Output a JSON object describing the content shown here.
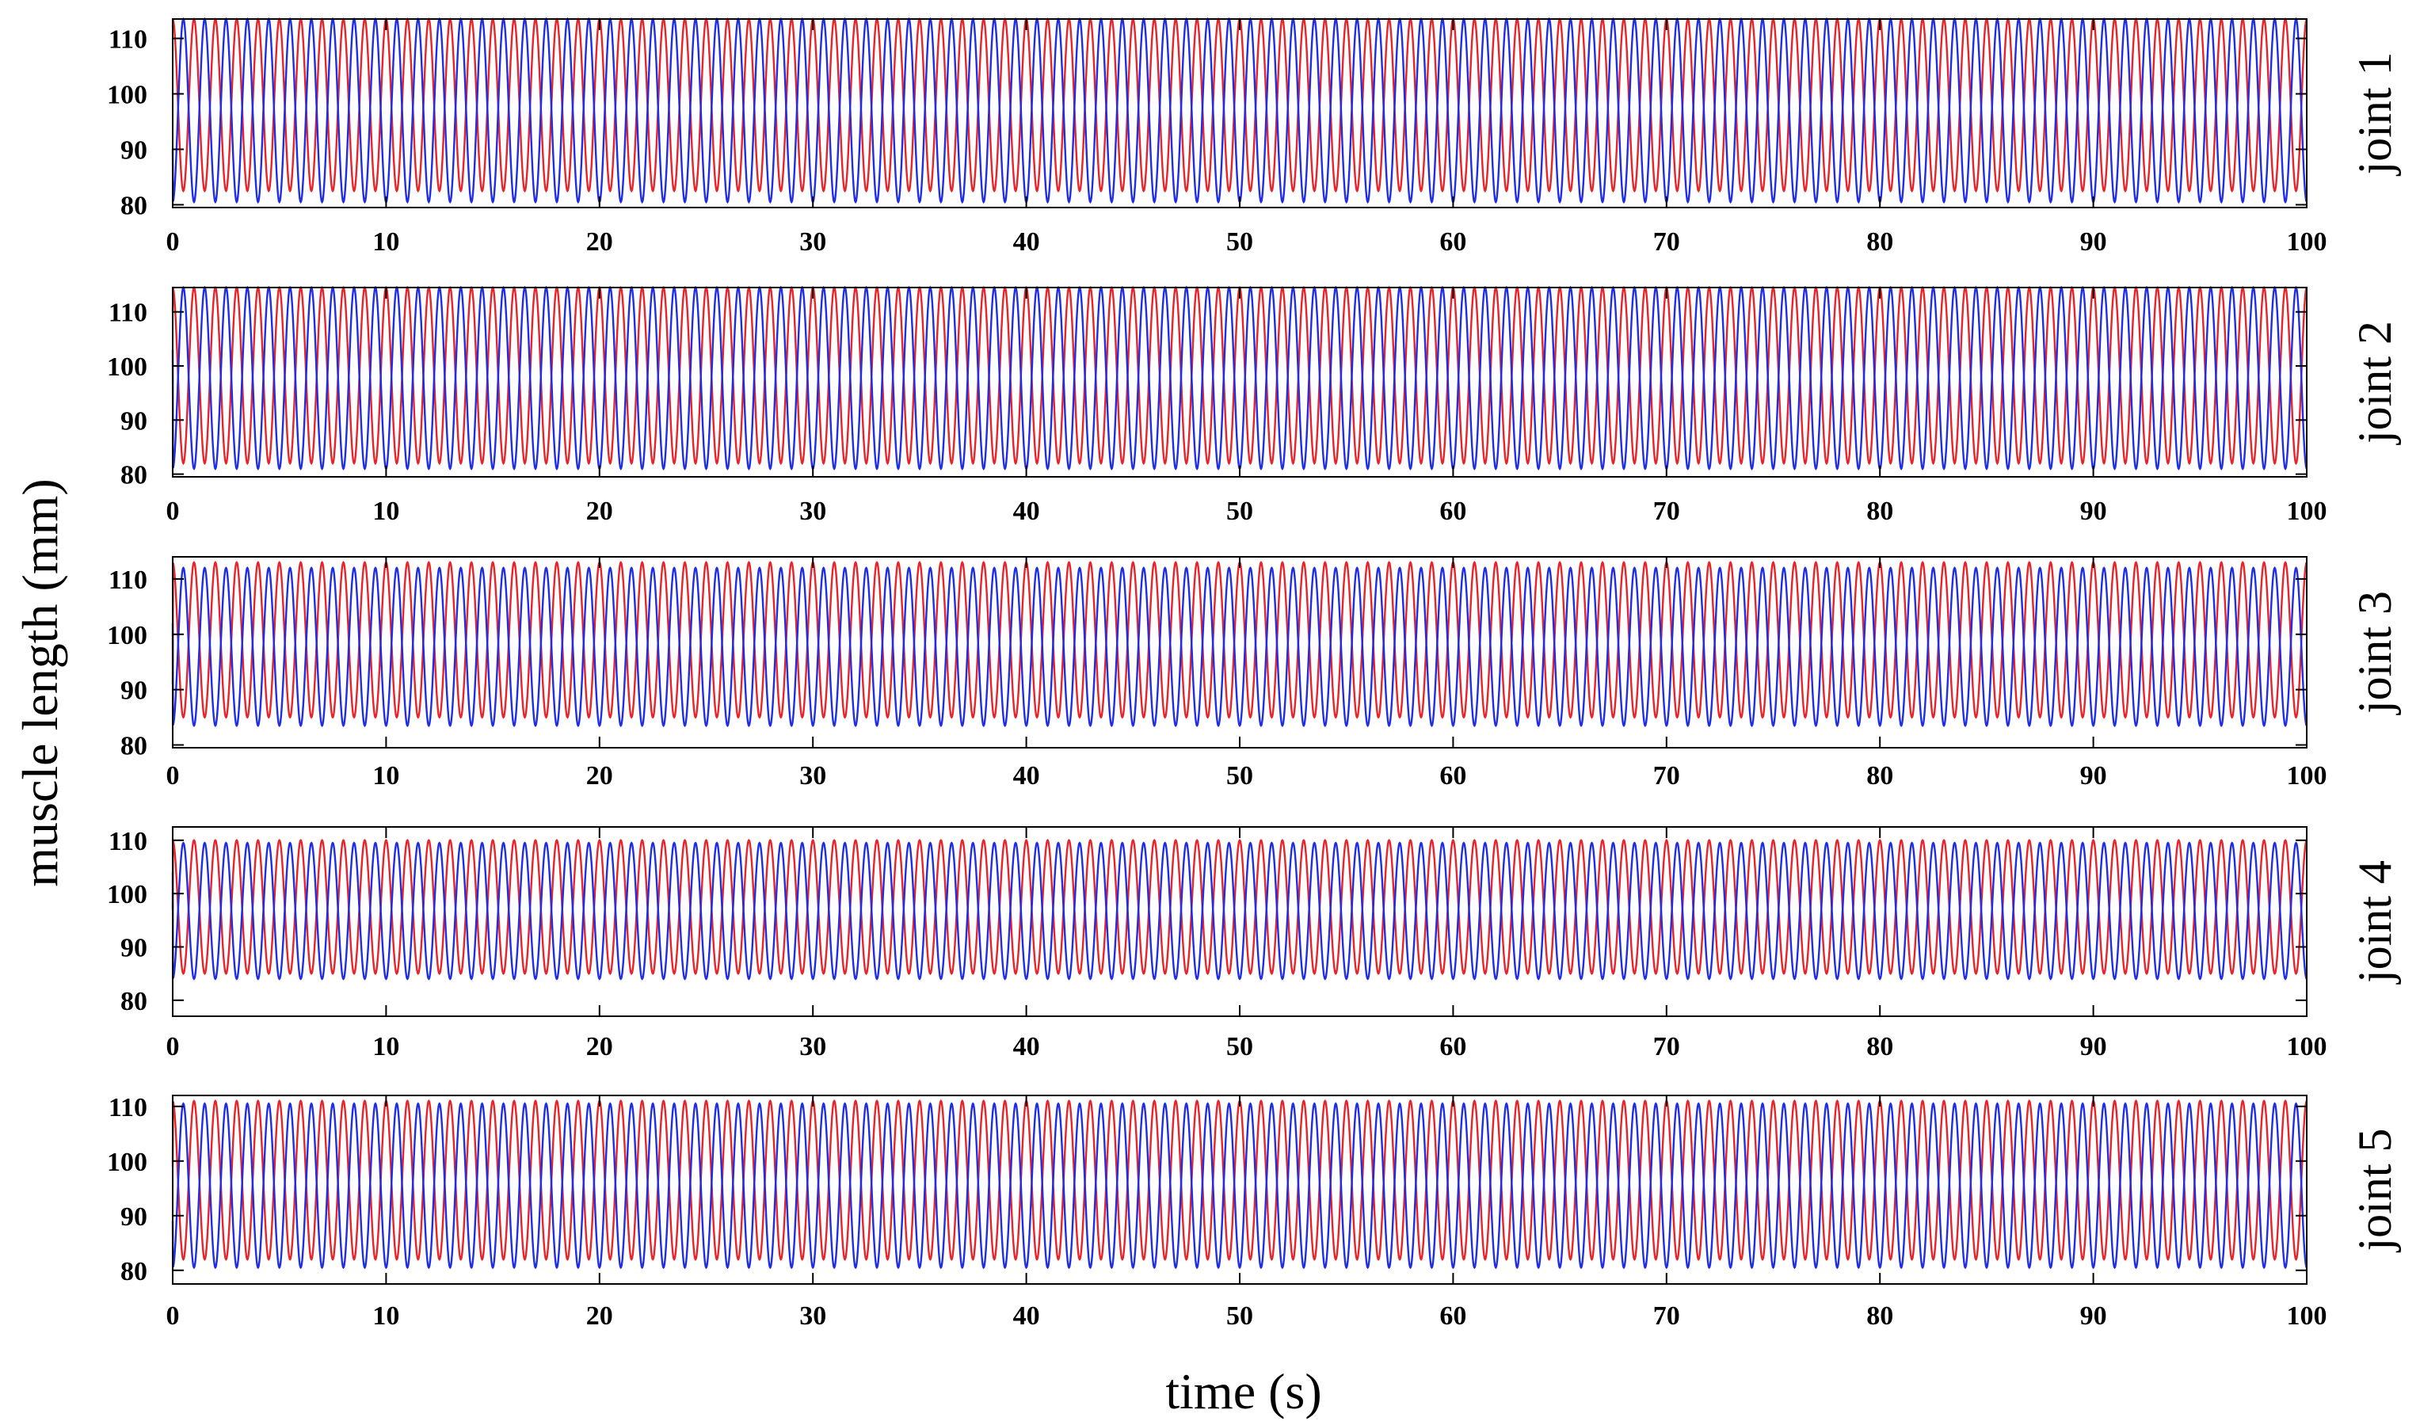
{
  "figure": {
    "ylabel": "muscle length (mm)",
    "xlabel": "time (s)"
  },
  "chart_data": [
    {
      "type": "line",
      "panel_label": "joint 1",
      "x_ticks": [
        "0",
        "10",
        "20",
        "30",
        "40",
        "50",
        "60",
        "70",
        "80",
        "90",
        "100"
      ],
      "y_ticks": [
        "80",
        "90",
        "100",
        "110"
      ],
      "xlim": [
        0,
        100
      ],
      "ylim": [
        79.5,
        113.5
      ],
      "grid": false,
      "series_colors": [
        "#e8232a",
        "#1f2de6"
      ],
      "cycles_per_panel": 100,
      "series": [
        {
          "values_description": "sinusoid",
          "color": "#e8232a",
          "min": 82.5,
          "max": 113.5,
          "start": 112,
          "phase": 0.0
        },
        {
          "values_description": "sinusoid",
          "color": "#1f2de6",
          "min": 80.5,
          "max": 113.5,
          "start": 90,
          "phase": 0.5
        }
      ]
    },
    {
      "type": "line",
      "panel_label": "joint 2",
      "x_ticks": [
        "0",
        "10",
        "20",
        "30",
        "40",
        "50",
        "60",
        "70",
        "80",
        "90",
        "100"
      ],
      "y_ticks": [
        "80",
        "90",
        "100",
        "110"
      ],
      "xlim": [
        0,
        100
      ],
      "ylim": [
        79.5,
        114.5
      ],
      "grid": false,
      "series_colors": [
        "#e8232a",
        "#1f2de6"
      ],
      "cycles_per_panel": 100,
      "series": [
        {
          "values_description": "sinusoid",
          "color": "#e8232a",
          "min": 82.0,
          "max": 114.5,
          "start": 110,
          "phase": 0.0
        },
        {
          "values_description": "sinusoid",
          "color": "#1f2de6",
          "min": 81.0,
          "max": 114.5,
          "start": 103,
          "phase": 0.5
        }
      ]
    },
    {
      "type": "line",
      "panel_label": "joint 3",
      "x_ticks": [
        "0",
        "10",
        "20",
        "30",
        "40",
        "50",
        "60",
        "70",
        "80",
        "90",
        "100"
      ],
      "y_ticks": [
        "80",
        "90",
        "100",
        "110"
      ],
      "xlim": [
        0,
        100
      ],
      "ylim": [
        79.5,
        114.0
      ],
      "grid": false,
      "series_colors": [
        "#e8232a",
        "#1f2de6"
      ],
      "cycles_per_panel": 100,
      "series": [
        {
          "values_description": "sinusoid",
          "color": "#e8232a",
          "min": 85.0,
          "max": 113.0,
          "start": 91,
          "phase": 0.0
        },
        {
          "values_description": "sinusoid",
          "color": "#1f2de6",
          "min": 83.5,
          "max": 112.0,
          "start": 102,
          "phase": 0.5
        }
      ]
    },
    {
      "type": "line",
      "panel_label": "joint 4",
      "x_ticks": [
        "0",
        "10",
        "20",
        "30",
        "40",
        "50",
        "60",
        "70",
        "80",
        "90",
        "100"
      ],
      "y_ticks": [
        "80",
        "90",
        "100",
        "110"
      ],
      "xlim": [
        0,
        100
      ],
      "ylim": [
        77.0,
        112.5
      ],
      "grid": false,
      "series_colors": [
        "#e8232a",
        "#1f2de6"
      ],
      "cycles_per_panel": 100,
      "series": [
        {
          "values_description": "sinusoid",
          "color": "#e8232a",
          "min": 85.0,
          "max": 110.0,
          "start": 97,
          "phase": 0.0
        },
        {
          "values_description": "sinusoid",
          "color": "#1f2de6",
          "min": 84.0,
          "max": 109.5,
          "start": 104,
          "phase": 0.5
        }
      ]
    },
    {
      "type": "line",
      "panel_label": "joint 5",
      "x_ticks": [
        "0",
        "10",
        "20",
        "30",
        "40",
        "50",
        "60",
        "70",
        "80",
        "90",
        "100"
      ],
      "y_ticks": [
        "80",
        "90",
        "100",
        "110"
      ],
      "xlim": [
        0,
        100
      ],
      "ylim": [
        77.5,
        112.0
      ],
      "grid": false,
      "series_colors": [
        "#e8232a",
        "#1f2de6"
      ],
      "cycles_per_panel": 100,
      "series": [
        {
          "values_description": "sinusoid",
          "color": "#e8232a",
          "min": 82.0,
          "max": 111.0,
          "start": 99,
          "phase": 0.0
        },
        {
          "values_description": "sinusoid",
          "color": "#1f2de6",
          "min": 80.5,
          "max": 110.5,
          "start": 89,
          "phase": 0.5
        }
      ]
    }
  ]
}
